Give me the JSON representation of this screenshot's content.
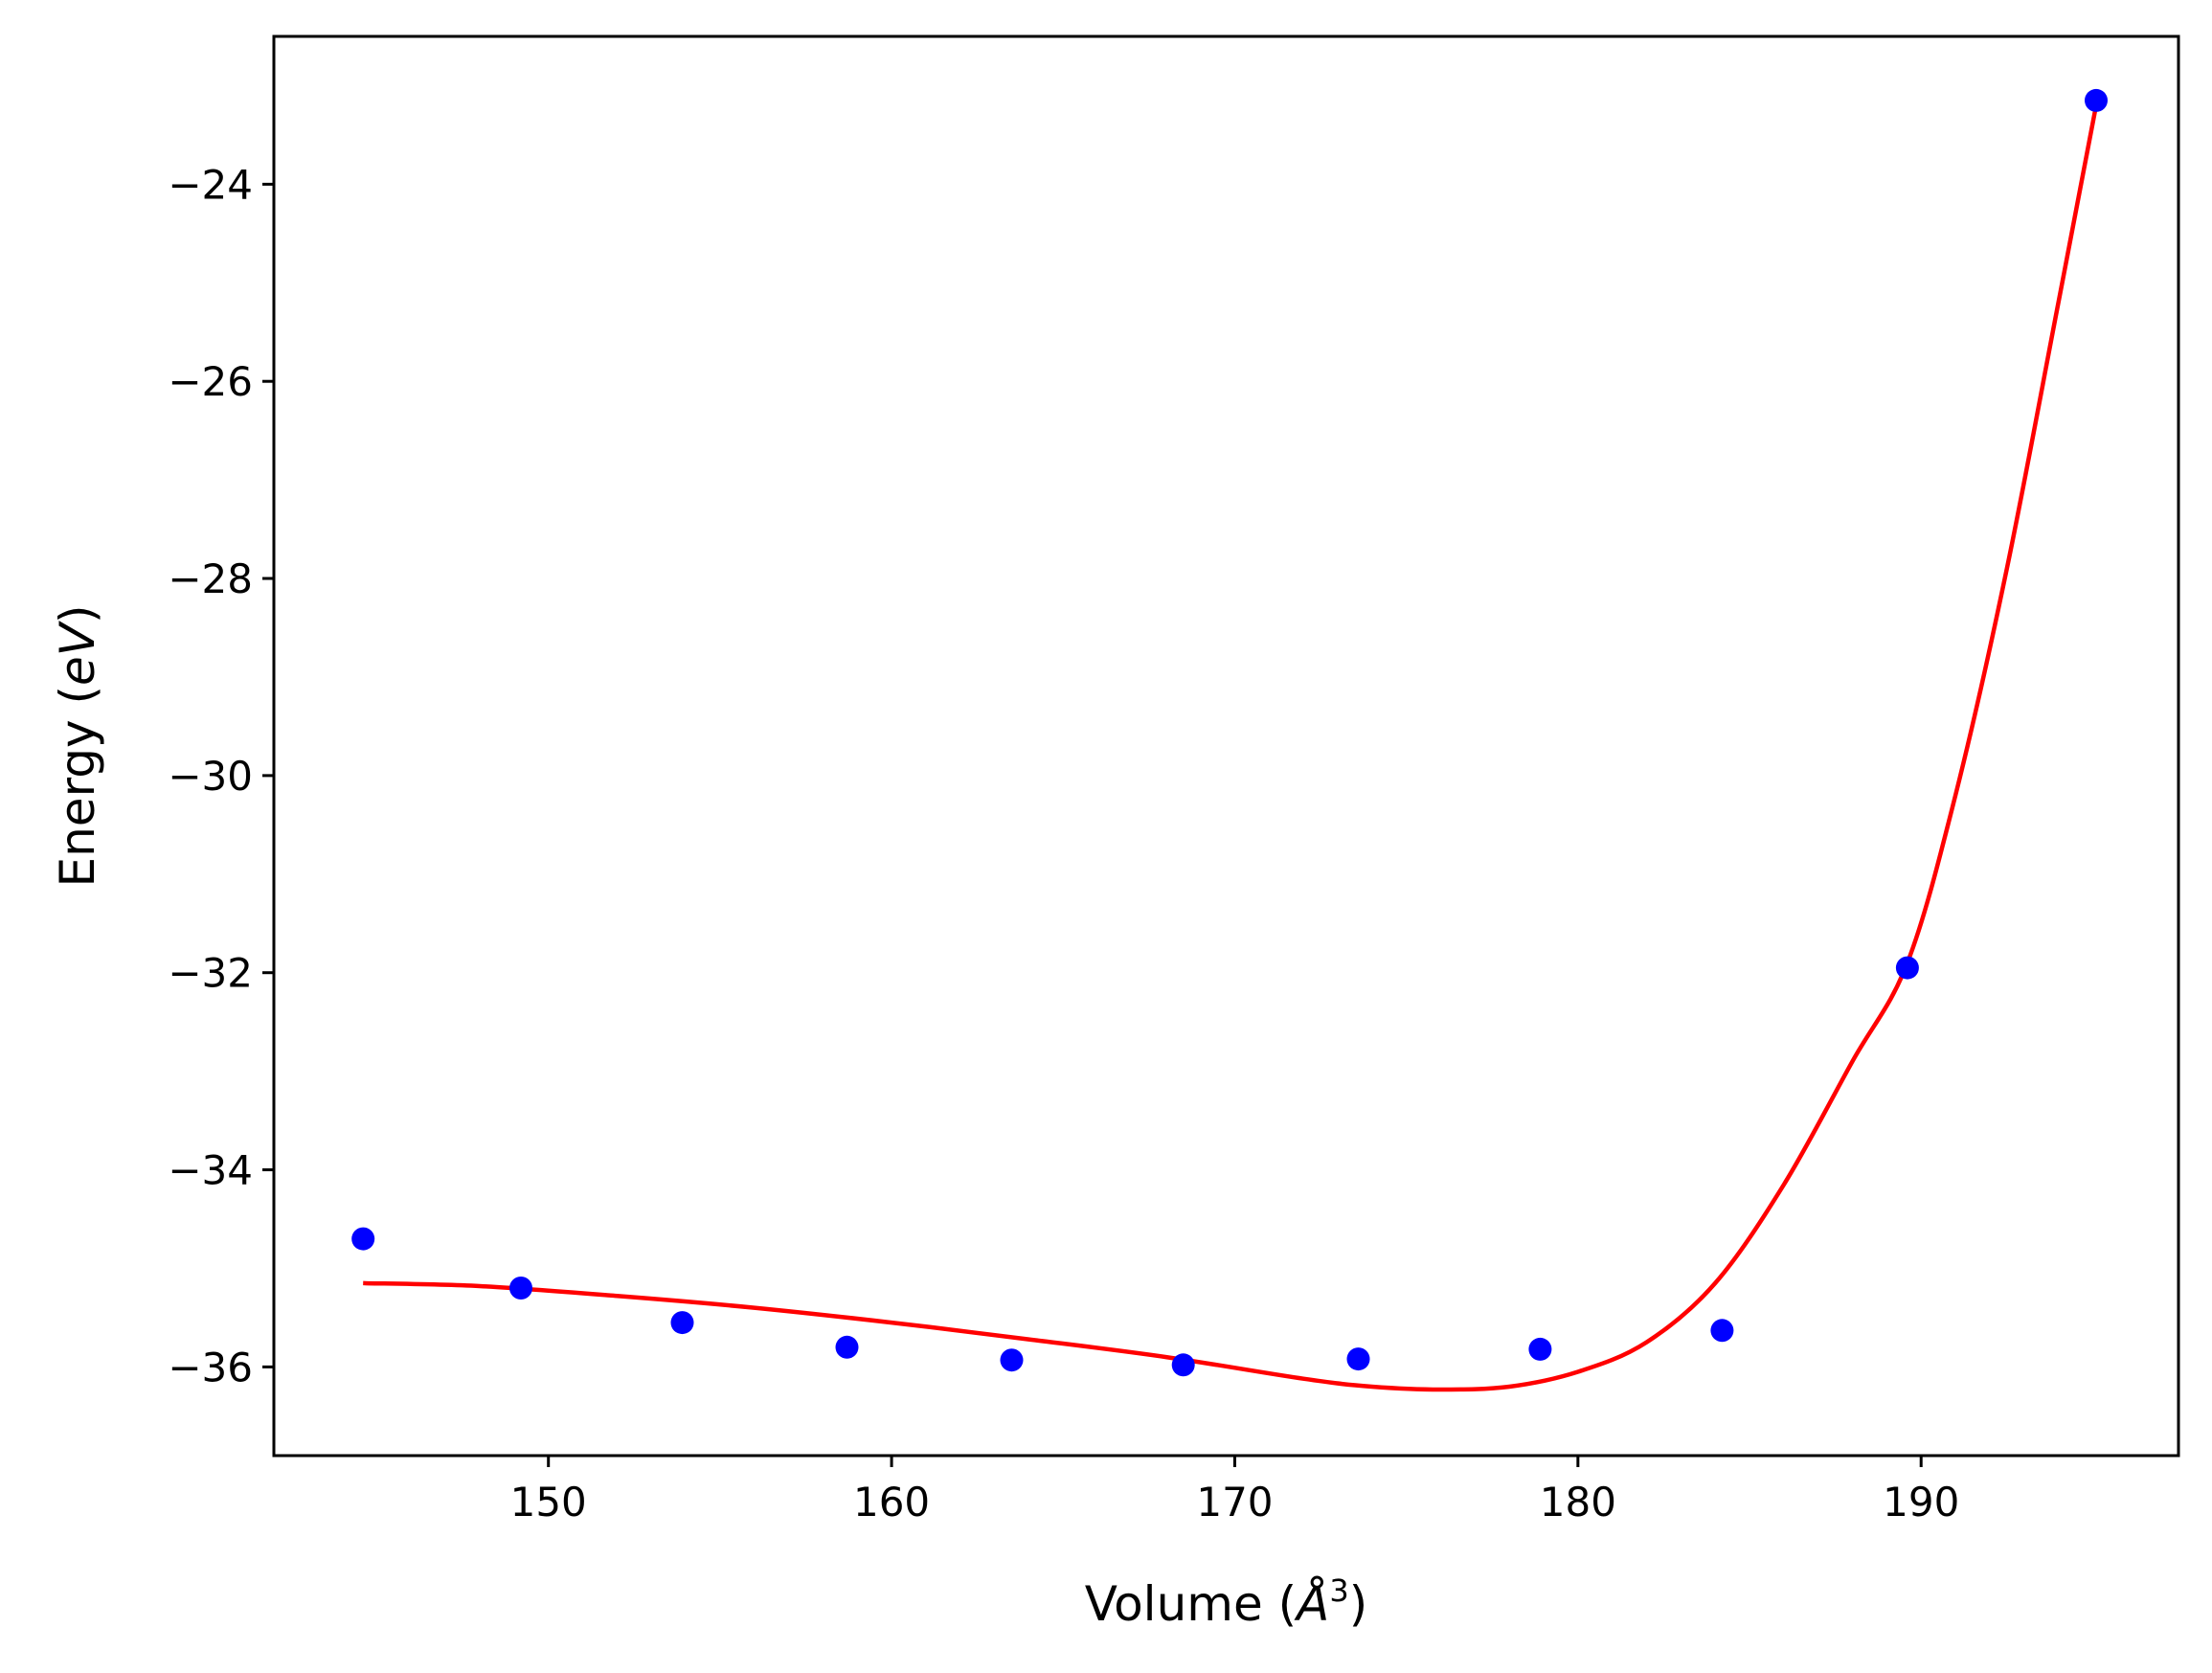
{
  "chart_data": {
    "type": "scatter",
    "xlabel": "Volume (Å³)",
    "xlabel_parts": {
      "prefix": "Volume (",
      "symbol": "Å",
      "exponent": "3",
      "suffix": ")"
    },
    "ylabel": "Energy (eV)",
    "ylabel_parts": {
      "prefix": "Energy (",
      "symbol": "eV",
      "suffix": ")"
    },
    "xlim": [
      142.0,
      197.5
    ],
    "ylim": [
      -36.9,
      -22.5
    ],
    "xticks": [
      150,
      160,
      170,
      180,
      190
    ],
    "xtick_labels": [
      "150",
      "160",
      "170",
      "180",
      "190"
    ],
    "yticks": [
      -36,
      -34,
      -32,
      -30,
      -28,
      -26,
      -24
    ],
    "ytick_labels": [
      "−36",
      "−34",
      "−32",
      "−30",
      "−28",
      "−26",
      "−24"
    ],
    "grid": false,
    "series": [
      {
        "kind": "scatter",
        "color": "#0000ff",
        "x": [
          144.6,
          149.2,
          153.9,
          158.7,
          163.5,
          168.5,
          173.6,
          178.9,
          184.2,
          189.6,
          195.1
        ],
        "y": [
          -34.7,
          -35.2,
          -35.55,
          -35.8,
          -35.93,
          -35.98,
          -35.92,
          -35.82,
          -35.63,
          -31.95,
          -23.15
        ]
      },
      {
        "kind": "line",
        "color": "#ff0000",
        "x": [
          144.6,
          148,
          152,
          156,
          160,
          164,
          168,
          172,
          174,
          176,
          178,
          180,
          182,
          184,
          186,
          188,
          189.6,
          191,
          192.5,
          194,
          195.1
        ],
        "y": [
          -35.15,
          -35.18,
          -35.28,
          -35.4,
          -35.55,
          -35.72,
          -35.9,
          -36.12,
          -36.2,
          -36.23,
          -36.2,
          -36.05,
          -35.75,
          -35.15,
          -34.15,
          -32.9,
          -31.9,
          -30.2,
          -27.9,
          -25.2,
          -23.2
        ]
      }
    ]
  }
}
